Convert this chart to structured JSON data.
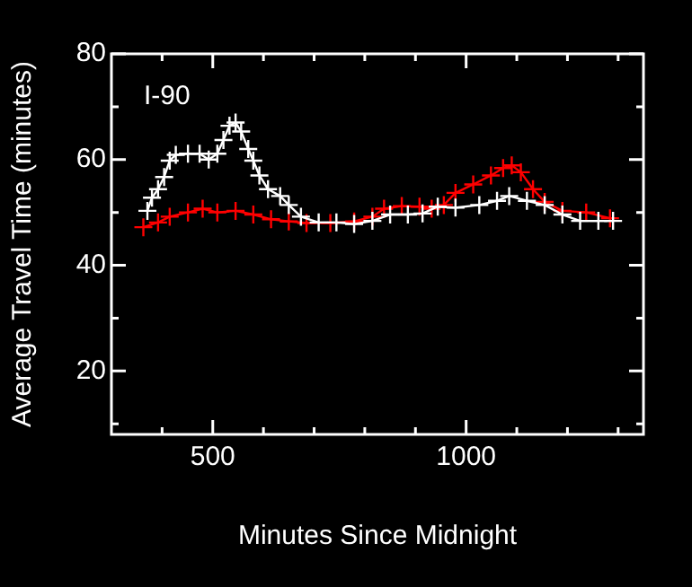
{
  "chart_data": {
    "type": "line",
    "xlabel": "Minutes Since Midnight",
    "ylabel": "Average Travel Time (minutes)",
    "annotations": [
      "I-90"
    ],
    "xlim": [
      300,
      1350
    ],
    "ylim": [
      8,
      80
    ],
    "xticks": [
      {
        "value": 400,
        "label": null
      },
      500,
      {
        "value": 600,
        "label": null
      },
      {
        "value": 700,
        "label": null
      },
      {
        "value": 800,
        "label": null
      },
      {
        "value": 900,
        "label": null
      },
      1000,
      {
        "value": 1100,
        "label": null
      },
      {
        "value": 1200,
        "label": null
      },
      {
        "value": 1300,
        "label": null
      }
    ],
    "yticks": [
      {
        "value": 10,
        "label": null
      },
      20,
      {
        "value": 30,
        "label": null
      },
      40,
      {
        "value": 50,
        "label": null
      },
      60,
      {
        "value": 70,
        "label": null
      },
      80
    ],
    "marker": "cross",
    "grid": false,
    "legend": false,
    "series": [
      {
        "color": "#ffffff",
        "x": [
          371,
          380,
          392,
          404,
          415,
          427,
          451,
          474,
          492,
          509,
          521,
          533,
          545,
          556,
          570,
          580,
          592,
          609,
          633,
          650,
          674,
          709,
          744,
          779,
          815,
          850,
          885,
          914,
          944,
          979,
          1026,
          1061,
          1085,
          1120,
          1155,
          1190,
          1225,
          1261,
          1290
        ],
        "values": [
          50.3,
          52.8,
          54.4,
          56.7,
          59.8,
          60.9,
          61.1,
          61.1,
          60,
          61.1,
          63.7,
          66.4,
          67,
          65.3,
          62,
          59.8,
          57,
          54.4,
          53.1,
          51.4,
          49.2,
          48.1,
          48.1,
          47.8,
          48.4,
          49.6,
          49.6,
          49.8,
          51.1,
          50.9,
          51.4,
          52.2,
          53.1,
          52.2,
          51.4,
          49.6,
          48.4,
          48.4,
          48.4
        ]
      },
      {
        "color": "#ff0000",
        "x": [
          363,
          392,
          415,
          451,
          480,
          509,
          545,
          580,
          615,
          650,
          685,
          732,
          779,
          815,
          838,
          873,
          908,
          932,
          956,
          979,
          1014,
          1049,
          1073,
          1090,
          1108,
          1132,
          1155,
          1190,
          1237,
          1284
        ],
        "values": [
          47.2,
          48.1,
          49.2,
          50,
          50.7,
          50,
          50.3,
          49.6,
          48.7,
          48.3,
          48,
          48,
          48.3,
          49.2,
          50.7,
          51.2,
          51.1,
          50.7,
          51.4,
          53.7,
          55.3,
          57,
          58.4,
          58.9,
          57.6,
          54.4,
          52,
          50.3,
          50,
          48.9
        ]
      }
    ]
  }
}
